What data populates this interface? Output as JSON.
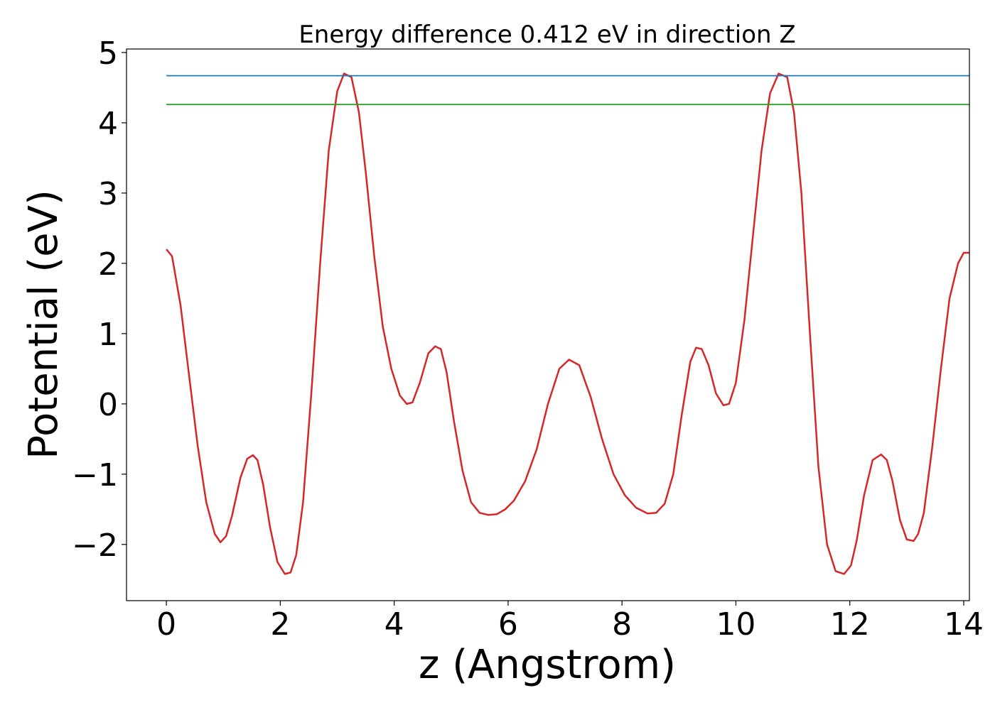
{
  "chart_data": {
    "type": "line",
    "title": "Energy difference 0.412 eV in direction Z",
    "xlabel": "z (Angstrom)",
    "ylabel": "Potential (eV)",
    "xlim": [
      -0.7,
      14.1
    ],
    "ylim": [
      -2.8,
      5.05
    ],
    "x_ticks": [
      0,
      2,
      4,
      6,
      8,
      10,
      12,
      14
    ],
    "x_tick_labels": [
      "0",
      "2",
      "4",
      "6",
      "8",
      "10",
      "12",
      "14"
    ],
    "y_ticks": [
      -2,
      -1,
      0,
      1,
      2,
      3,
      4,
      5
    ],
    "y_tick_labels": [
      "−2",
      "−1",
      "0",
      "1",
      "2",
      "3",
      "4",
      "5"
    ],
    "grid": false,
    "series": [
      {
        "color": "#d62728",
        "x": [
          0,
          0.1,
          0.25,
          0.4,
          0.55,
          0.7,
          0.85,
          0.95,
          1.05,
          1.15,
          1.3,
          1.42,
          1.52,
          1.6,
          1.7,
          1.82,
          1.95,
          2.08,
          2.18,
          2.28,
          2.4,
          2.55,
          2.7,
          2.85,
          3.0,
          3.12,
          3.25,
          3.38,
          3.5,
          3.65,
          3.8,
          3.95,
          4.1,
          4.22,
          4.32,
          4.45,
          4.6,
          4.72,
          4.82,
          4.92,
          5.05,
          5.2,
          5.35,
          5.5,
          5.65,
          5.8,
          5.95,
          6.1,
          6.3,
          6.5,
          6.7,
          6.9,
          7.07,
          7.25,
          7.45,
          7.65,
          7.85,
          8.05,
          8.25,
          8.45,
          8.6,
          8.75,
          8.9,
          9.05,
          9.2,
          9.3,
          9.4,
          9.52,
          9.65,
          9.78,
          9.88,
          10.0,
          10.15,
          10.3,
          10.45,
          10.6,
          10.75,
          10.9,
          11.02,
          11.15,
          11.3,
          11.45,
          11.6,
          11.75,
          11.9,
          12.02,
          12.12,
          12.25,
          12.4,
          12.55,
          12.65,
          12.75,
          12.88,
          13.0,
          13.12,
          13.2,
          13.3,
          13.45,
          13.6,
          13.75,
          13.9,
          14.0,
          14.1
        ],
        "y": [
          2.2,
          2.1,
          1.4,
          0.4,
          -0.6,
          -1.4,
          -1.85,
          -1.97,
          -1.88,
          -1.6,
          -1.05,
          -0.78,
          -0.73,
          -0.8,
          -1.15,
          -1.75,
          -2.25,
          -2.42,
          -2.4,
          -2.15,
          -1.4,
          0.2,
          2.0,
          3.6,
          4.45,
          4.7,
          4.65,
          4.15,
          3.3,
          2.1,
          1.1,
          0.5,
          0.12,
          0.0,
          0.02,
          0.3,
          0.72,
          0.82,
          0.78,
          0.45,
          -0.25,
          -0.95,
          -1.4,
          -1.55,
          -1.58,
          -1.57,
          -1.5,
          -1.38,
          -1.1,
          -0.65,
          0.0,
          0.5,
          0.63,
          0.55,
          0.1,
          -0.5,
          -1.0,
          -1.3,
          -1.48,
          -1.56,
          -1.55,
          -1.42,
          -1.0,
          -0.15,
          0.6,
          0.8,
          0.78,
          0.55,
          0.15,
          -0.02,
          0.0,
          0.3,
          1.2,
          2.4,
          3.6,
          4.42,
          4.7,
          4.65,
          4.15,
          3.0,
          1.0,
          -0.9,
          -2.0,
          -2.38,
          -2.42,
          -2.3,
          -1.95,
          -1.3,
          -0.8,
          -0.72,
          -0.8,
          -1.1,
          -1.65,
          -1.93,
          -1.95,
          -1.85,
          -1.55,
          -0.6,
          0.5,
          1.5,
          2.0,
          2.15,
          2.15
        ]
      },
      {
        "color": "#1f77b4",
        "x": [
          0,
          14.1
        ],
        "y": [
          4.67,
          4.67
        ]
      },
      {
        "color": "#2ca02c",
        "x": [
          0,
          14.1
        ],
        "y": [
          4.26,
          4.26
        ]
      }
    ]
  }
}
